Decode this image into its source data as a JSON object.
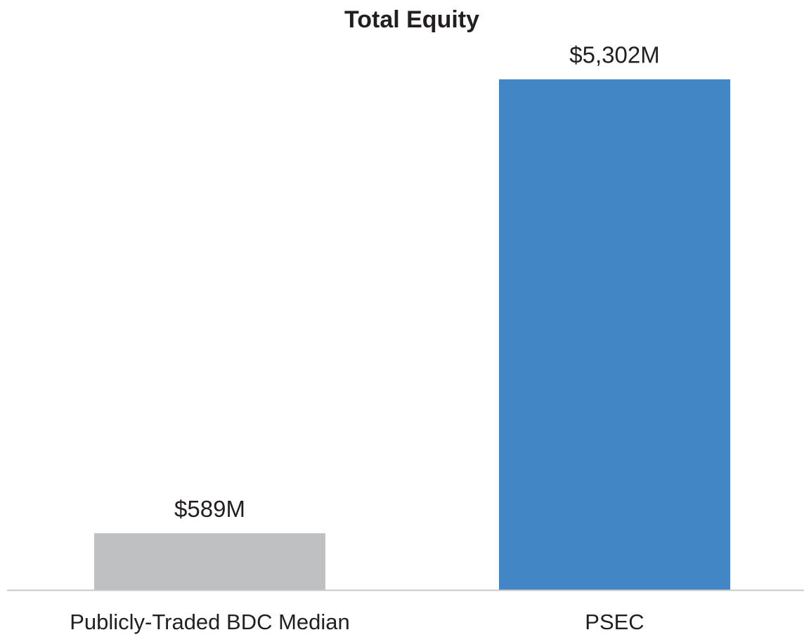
{
  "chart_data": {
    "type": "bar",
    "title": "Total Equity",
    "categories": [
      "Publicly-Traded BDC Median",
      "PSEC"
    ],
    "values": [
      589,
      5302
    ],
    "value_labels": [
      "$589M",
      "$5,302M"
    ],
    "colors": [
      "#bfc0c2",
      "#4286c6"
    ]
  }
}
